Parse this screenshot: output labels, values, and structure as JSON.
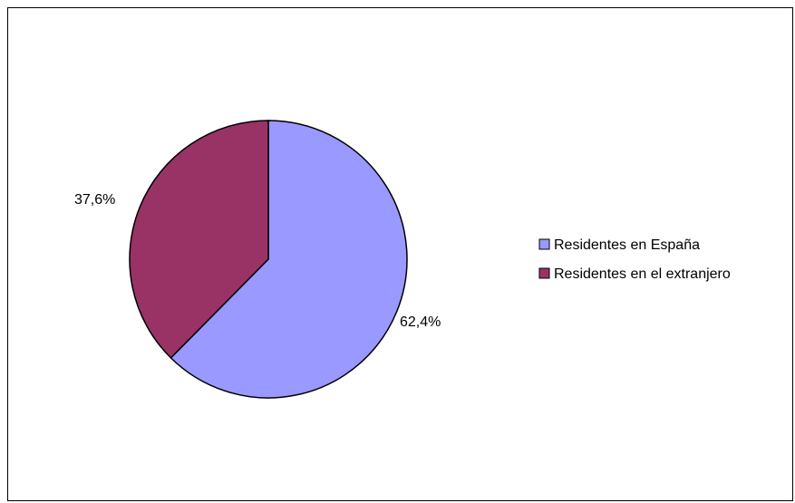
{
  "chart_data": {
    "type": "pie",
    "categories": [
      "Residentes en España",
      "Residentes en el extranjero"
    ],
    "values": [
      62.4,
      37.6
    ],
    "data_labels": [
      "62,4%",
      "37,6%"
    ],
    "colors": [
      "#9999FF",
      "#993366"
    ],
    "start_angle_deg": 0,
    "direction": "clockwise",
    "legend": {
      "position": "right",
      "entries": [
        "Residentes en España",
        "Residentes en el extranjero"
      ]
    },
    "title": "",
    "xlabel": "",
    "ylabel": ""
  }
}
